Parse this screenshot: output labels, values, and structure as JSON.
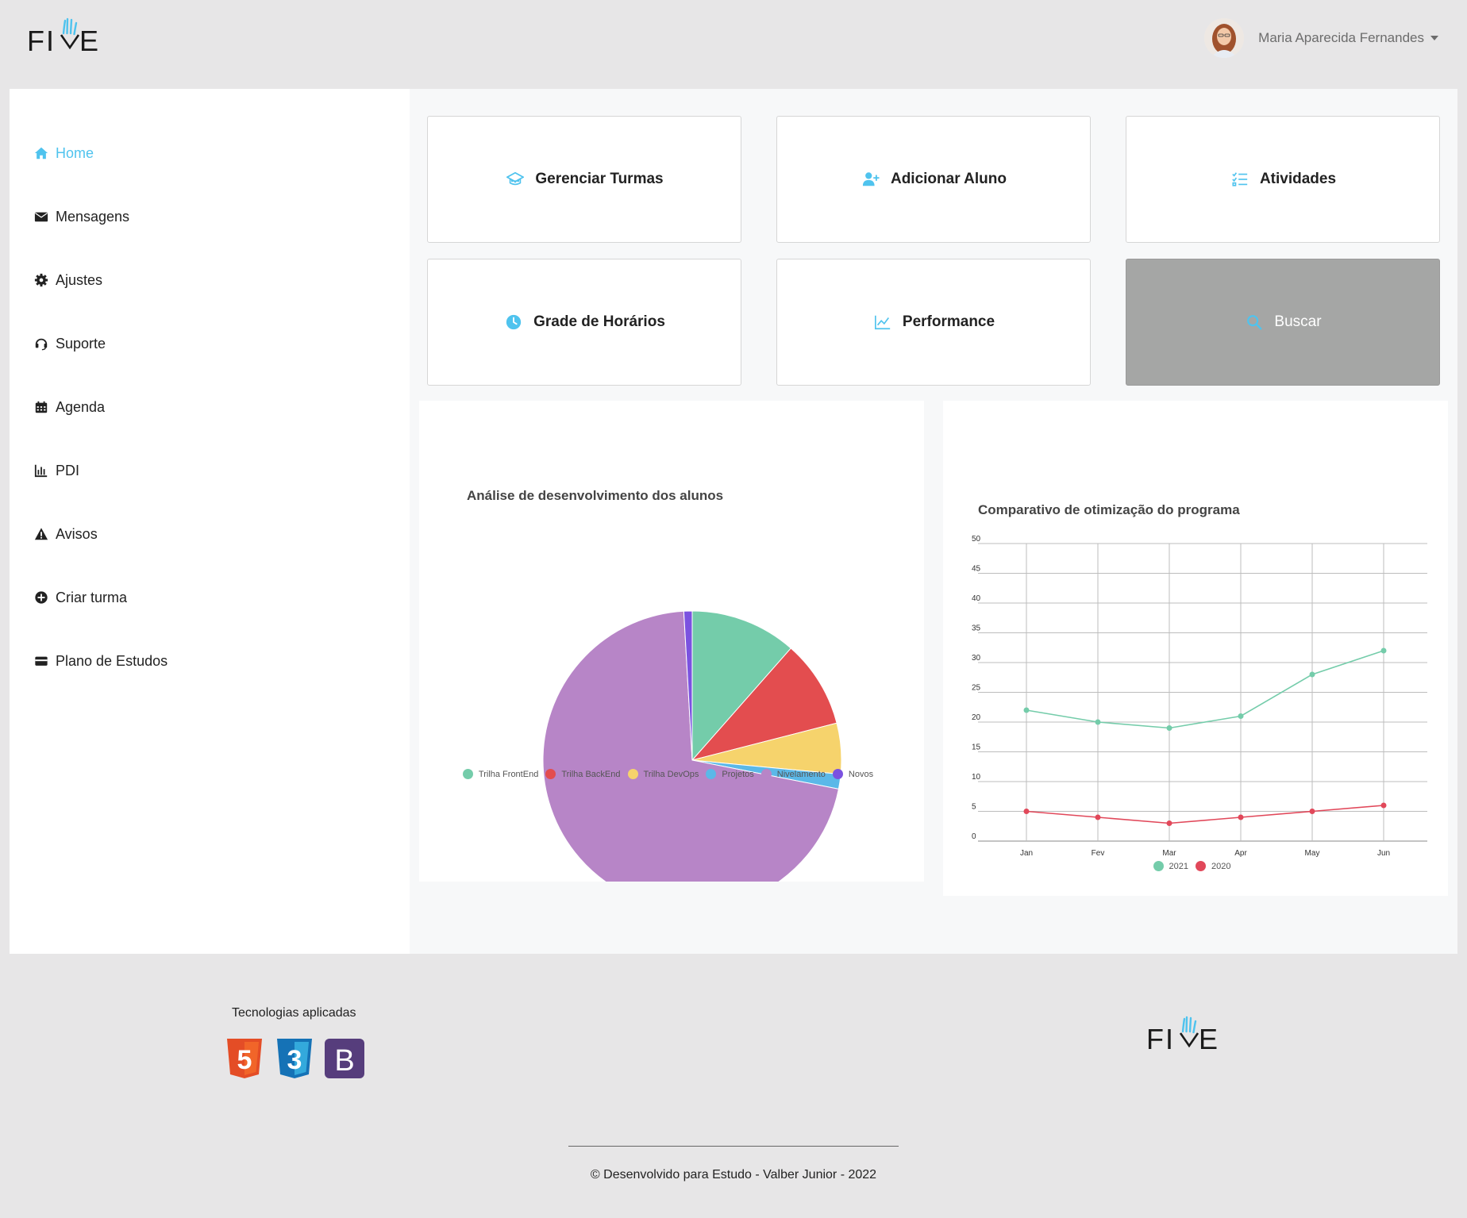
{
  "header": {
    "logo_text": "FIVE",
    "user_name": "Maria Aparecida Fernandes"
  },
  "sidebar": {
    "items": [
      {
        "label": "Home",
        "icon": "home-icon",
        "active": true
      },
      {
        "label": "Mensagens",
        "icon": "envelope-icon"
      },
      {
        "label": "Ajustes",
        "icon": "gear-icon"
      },
      {
        "label": "Suporte",
        "icon": "headset-icon"
      },
      {
        "label": "Agenda",
        "icon": "calendar-icon"
      },
      {
        "label": "PDI",
        "icon": "bar-chart-icon"
      },
      {
        "label": "Avisos",
        "icon": "warning-icon"
      },
      {
        "label": "Criar turma",
        "icon": "plus-circle-icon"
      },
      {
        "label": "Plano de Estudos",
        "icon": "card-icon"
      }
    ]
  },
  "cards": [
    {
      "label": "Gerenciar Turmas",
      "icon": "school-icon"
    },
    {
      "label": "Adicionar Aluno",
      "icon": "add-user-icon"
    },
    {
      "label": "Atividades",
      "icon": "checklist-icon"
    },
    {
      "label": "Grade de Horários",
      "icon": "clock-icon"
    },
    {
      "label": "Performance",
      "icon": "line-chart-icon"
    },
    {
      "label": "Buscar",
      "icon": "search-icon"
    }
  ],
  "colors": {
    "accent": "#4fc3ee",
    "teal": "#74ccaa",
    "red": "#e34d4f",
    "yellow": "#f6d36c",
    "blue": "#5bb8e8",
    "lilac": "#b785c7",
    "purple": "#7b52e0",
    "pink_red": "#e1485a"
  },
  "chart_data": [
    {
      "type": "pie",
      "title": "Análise de desenvolvimento dos alunos",
      "categories": [
        "Trilha FrontEnd",
        "Trilha BackEnd",
        "Trilha DevOps",
        "Projetos",
        "Nivelamento",
        "Novos"
      ],
      "values": [
        11.5,
        9.5,
        5.5,
        1.6,
        71.0,
        0.9
      ],
      "colors": [
        "#74ccaa",
        "#e34d4f",
        "#f6d36c",
        "#5bb8e8",
        "#b785c7",
        "#7b52e0"
      ],
      "legend": "bottom"
    },
    {
      "type": "line",
      "title": "Comparativo de otimização do programa",
      "x": [
        "Jan",
        "Fev",
        "Mar",
        "Apr",
        "May",
        "Jun"
      ],
      "ylim": [
        0,
        50
      ],
      "yticks": [
        0,
        5,
        10,
        15,
        20,
        25,
        30,
        35,
        40,
        45,
        50
      ],
      "grid": true,
      "legend": "bottom",
      "series": [
        {
          "name": "2021",
          "values": [
            22,
            20,
            19,
            21,
            28,
            32
          ],
          "color": "#74ccaa"
        },
        {
          "name": "2020",
          "values": [
            5,
            4,
            3,
            4,
            5,
            6
          ],
          "color": "#e1485a"
        }
      ]
    }
  ],
  "footer": {
    "tech_title": "Tecnologias aplicadas",
    "tech_icons": [
      "html5-icon",
      "css3-icon",
      "bootstrap-icon"
    ],
    "html5_label": "5",
    "css3_label": "3",
    "bootstrap_label": "B",
    "logo_text": "FIVE",
    "copyright": "© Desenvolvido para Estudo - Valber Junior - 2022"
  }
}
